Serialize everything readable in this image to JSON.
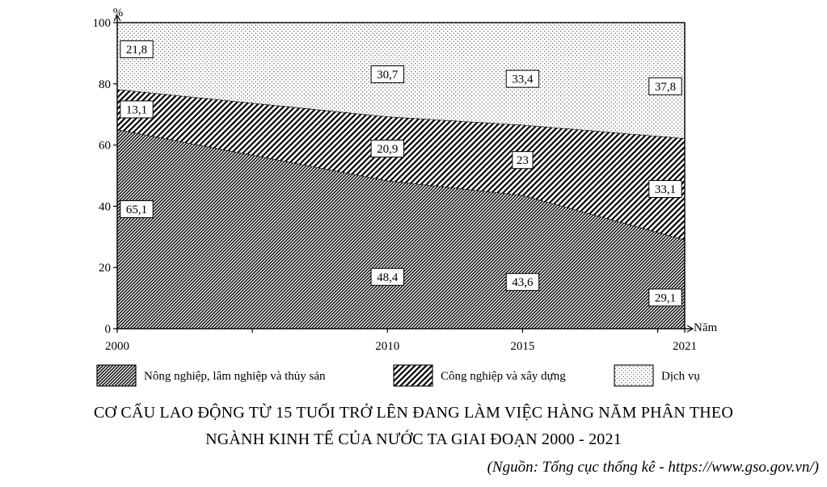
{
  "chart_data": {
    "type": "area",
    "stacked": true,
    "x": [
      "2000",
      "2010",
      "2015",
      "2021"
    ],
    "series": [
      {
        "name": "Nông nghiệp, lâm nghiệp và thủy sản",
        "values": [
          65.1,
          48.4,
          43.6,
          29.1
        ],
        "labels": [
          "65,1",
          "48,4",
          "43,6",
          "29,1"
        ],
        "pattern": "dense-diagonal"
      },
      {
        "name": "Công nghiệp và xây dựng",
        "values": [
          13.1,
          20.9,
          23,
          33.1
        ],
        "labels": [
          "13,1",
          "20,9",
          "23",
          "33,1"
        ],
        "pattern": "diagonal-hatch"
      },
      {
        "name": "Dịch vụ",
        "values": [
          21.8,
          30.7,
          33.4,
          37.8
        ],
        "labels": [
          "21,8",
          "30,7",
          "33,4",
          "37,8"
        ],
        "pattern": "dots"
      }
    ],
    "ylim": [
      0,
      100
    ],
    "yticks": [
      "0",
      "20",
      "40",
      "60",
      "80",
      "100"
    ],
    "ylabel": "%",
    "xlabel": "Năm",
    "legend_position": "bottom",
    "title_line1": "CƠ CẤU LAO ĐỘNG TỪ 15 TUỔI TRỞ LÊN ĐANG LÀM VIỆC HÀNG NĂM PHÂN THEO",
    "title_line2": "NGÀNH KINH TẾ CỦA NƯỚC TA GIAI ĐOẠN 2000 - 2021",
    "source": "(Nguồn: Tổng cục thống kê - https://www.gso.gov.vn/)"
  }
}
